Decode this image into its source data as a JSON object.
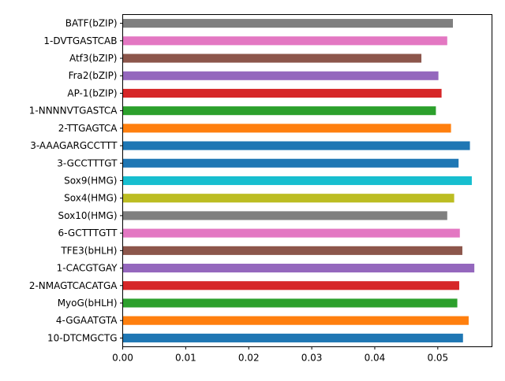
{
  "chart_data": {
    "type": "bar",
    "orientation": "horizontal",
    "categories": [
      "BATF(bZIP)",
      "1-DVTGASTCAB",
      "Atf3(bZIP)",
      "Fra2(bZIP)",
      "AP-1(bZIP)",
      "1-NNNNVTGASTCA",
      "2-TTGAGTCA",
      "3-AAAGARGCCTTT",
      "3-GCCTTTGT",
      "Sox9(HMG)",
      "Sox4(HMG)",
      "Sox10(HMG)",
      "6-GCTTTGTT",
      "TFE3(bHLH)",
      "1-CACGTGAY",
      "2-NMAGTCACATGA",
      "MyoG(bHLH)",
      "4-GGAATGTA",
      "10-DTCMGCTG"
    ],
    "values": [
      0.0524,
      0.0515,
      0.0474,
      0.0501,
      0.0506,
      0.0497,
      0.0521,
      0.0551,
      0.0533,
      0.0554,
      0.0526,
      0.0515,
      0.0535,
      0.0539,
      0.0558,
      0.0534,
      0.0531,
      0.0549,
      0.054
    ],
    "colors": [
      "#7f7f7f",
      "#e377c2",
      "#8c564b",
      "#9467bd",
      "#d62728",
      "#2ca02c",
      "#ff7f0e",
      "#1f77b4",
      "#1f77b4",
      "#17becf",
      "#bcbd22",
      "#7f7f7f",
      "#e377c2",
      "#8c564b",
      "#9467bd",
      "#d62728",
      "#2ca02c",
      "#ff7f0e",
      "#1f77b4"
    ],
    "x_ticks": [
      "0.00",
      "0.01",
      "0.02",
      "0.03",
      "0.04",
      "0.05"
    ],
    "x_tick_values": [
      0,
      0.01,
      0.02,
      0.03,
      0.04,
      0.05
    ],
    "xlim": [
      0,
      0.0586
    ],
    "title": "",
    "xlabel": "",
    "ylabel": "",
    "grid": false,
    "legend": "none"
  }
}
